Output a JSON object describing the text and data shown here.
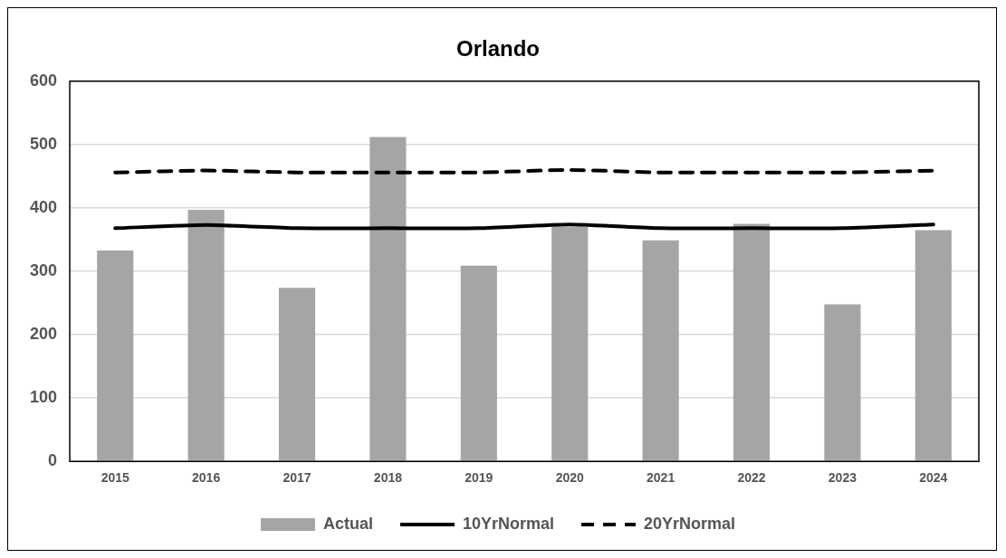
{
  "chart_data": {
    "type": "bar",
    "title": "Orlando",
    "categories": [
      "2015",
      "2016",
      "2017",
      "2018",
      "2019",
      "2020",
      "2021",
      "2022",
      "2023",
      "2024"
    ],
    "series": [
      {
        "name": "Actual",
        "color": "#a5a5a5",
        "values": [
          333,
          397,
          274,
          512,
          309,
          370,
          349,
          375,
          248,
          365
        ]
      },
      {
        "name": "10YrNormal",
        "type": "line",
        "color": "#000000",
        "line_style": "solid",
        "values": [
          368,
          373,
          368,
          368,
          368,
          374,
          368,
          368,
          368,
          374
        ]
      },
      {
        "name": "20YrNormal",
        "type": "line",
        "color": "#000000",
        "line_style": "dashed",
        "values": [
          456,
          459,
          456,
          456,
          456,
          460,
          456,
          456,
          456,
          459
        ]
      }
    ],
    "ylim": [
      0,
      600
    ],
    "yticks": [
      0,
      100,
      200,
      300,
      400,
      500,
      600
    ],
    "grid": "y",
    "legend": "bottom",
    "marker": "none"
  }
}
